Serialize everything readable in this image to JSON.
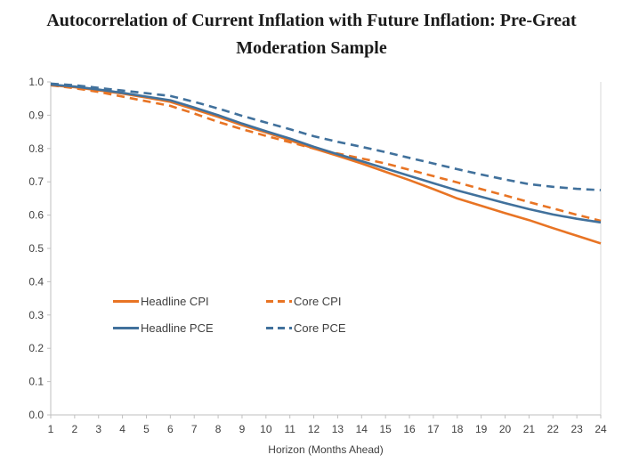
{
  "title": "Autocorrelation of Current Inflation with Future Inflation: Pre-Great Moderation Sample",
  "legend": {
    "items": [
      {
        "label": "Headline CPI",
        "color": "#E87424",
        "dashed": false
      },
      {
        "label": "Core CPI",
        "color": "#E87424",
        "dashed": true
      },
      {
        "label": "Headline PCE",
        "color": "#41719C",
        "dashed": false
      },
      {
        "label": "Core PCE",
        "color": "#41719C",
        "dashed": true
      }
    ]
  },
  "chart_data": {
    "type": "line",
    "title": "Autocorrelation of Current Inflation with Future Inflation: Pre-Great Moderation Sample",
    "xlabel": "Horizon (Months Ahead)",
    "ylabel": "",
    "x": [
      1,
      2,
      3,
      4,
      5,
      6,
      7,
      8,
      9,
      10,
      11,
      12,
      13,
      14,
      15,
      16,
      17,
      18,
      19,
      20,
      21,
      22,
      23,
      24
    ],
    "xlim": [
      1,
      24
    ],
    "ylim": [
      0.0,
      1.0
    ],
    "y_tick_step": 0.1,
    "y_tick_labels": [
      "0.0",
      "0.1",
      "0.2",
      "0.3",
      "0.4",
      "0.5",
      "0.6",
      "0.7",
      "0.8",
      "0.9",
      "1.0"
    ],
    "grid": false,
    "legend_position": "inside lower-left",
    "axis_color": "#BFBFBF",
    "plot_border_right_color": "#D9D9D9",
    "tick_text_color": "#404040",
    "series": [
      {
        "name": "Headline CPI",
        "color": "#E87424",
        "style": "solid",
        "values": [
          0.99,
          0.984,
          0.975,
          0.965,
          0.953,
          0.94,
          0.918,
          0.895,
          0.87,
          0.848,
          0.825,
          0.8,
          0.778,
          0.755,
          0.73,
          0.705,
          0.678,
          0.65,
          0.628,
          0.606,
          0.585,
          0.561,
          0.538,
          0.515
        ]
      },
      {
        "name": "Core CPI",
        "color": "#E87424",
        "style": "dashed",
        "values": [
          0.99,
          0.981,
          0.97,
          0.956,
          0.942,
          0.928,
          0.905,
          0.88,
          0.858,
          0.838,
          0.819,
          0.8,
          0.785,
          0.77,
          0.755,
          0.736,
          0.717,
          0.698,
          0.678,
          0.659,
          0.639,
          0.62,
          0.601,
          0.583
        ]
      },
      {
        "name": "Headline PCE",
        "color": "#41719C",
        "style": "solid",
        "values": [
          0.992,
          0.986,
          0.977,
          0.967,
          0.956,
          0.945,
          0.923,
          0.9,
          0.875,
          0.852,
          0.83,
          0.805,
          0.783,
          0.762,
          0.74,
          0.718,
          0.696,
          0.674,
          0.655,
          0.636,
          0.618,
          0.602,
          0.589,
          0.578
        ]
      },
      {
        "name": "Core PCE",
        "color": "#41719C",
        "style": "dashed",
        "values": [
          0.995,
          0.99,
          0.982,
          0.974,
          0.966,
          0.958,
          0.94,
          0.92,
          0.898,
          0.878,
          0.858,
          0.837,
          0.82,
          0.805,
          0.789,
          0.772,
          0.755,
          0.738,
          0.722,
          0.707,
          0.693,
          0.685,
          0.679,
          0.675
        ]
      }
    ]
  }
}
